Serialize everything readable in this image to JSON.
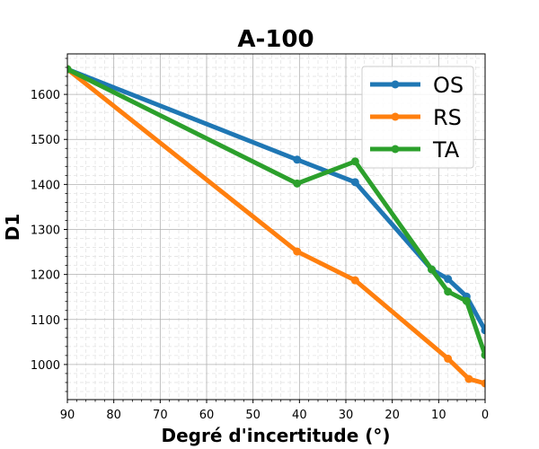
{
  "chart_data": {
    "type": "line",
    "title": "A-100",
    "xlabel": "Degré d'incertitude (°)",
    "ylabel": "D1",
    "xlim": [
      90,
      0
    ],
    "ylim": [
      922,
      1690
    ],
    "x_reversed": true,
    "x_ticks": [
      "90",
      "80",
      "70",
      "60",
      "50",
      "40",
      "30",
      "20",
      "10",
      "0"
    ],
    "y_ticks": [
      "1000",
      "1100",
      "1200",
      "1300",
      "1400",
      "1500",
      "1600"
    ],
    "grid": true,
    "minor_grid": true,
    "legend_position": "top-right",
    "series": [
      {
        "name": "OS",
        "color": "#1f77b4",
        "x": [
          90,
          40.5,
          28,
          11.5,
          8,
          4,
          0
        ],
        "y": [
          1656,
          1455,
          1405,
          1211,
          1190,
          1151,
          1076
        ]
      },
      {
        "name": "RS",
        "color": "#ff7f0e",
        "x": [
          90,
          40.5,
          28,
          8,
          3.5,
          0
        ],
        "y": [
          1656,
          1251,
          1187,
          1013,
          968,
          958
        ]
      },
      {
        "name": "TA",
        "color": "#2ca02c",
        "x": [
          90,
          40.5,
          28,
          11.5,
          8,
          4,
          0
        ],
        "y": [
          1656,
          1402,
          1451,
          1211,
          1162,
          1141,
          1021
        ]
      }
    ]
  }
}
